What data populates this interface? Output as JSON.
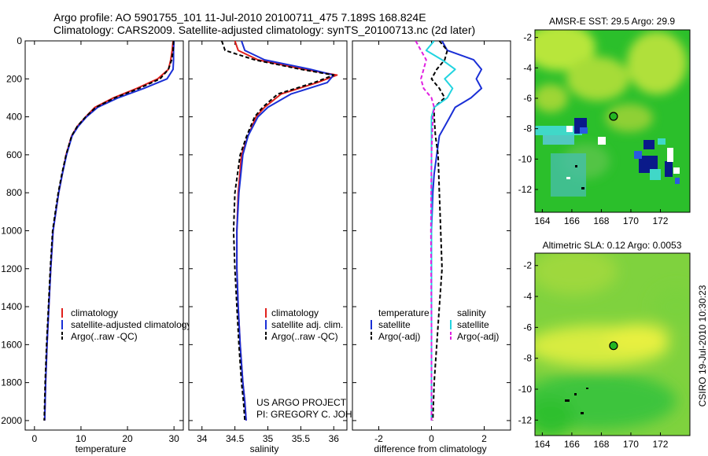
{
  "header": {
    "line1": "Argo profile: AO 5901755_101 11-Jul-2010 20100711_475 7.189S 168.824E",
    "line2": "Climatology: CARS2009. Satellite-adjusted climatology: synTS_20100713.nc (2d later)"
  },
  "credits": {
    "project": "US ARGO PROJECT",
    "pi": "PI: GREGORY C. JOHNSON",
    "timestamp": "CSIRO 19-Jul-2010 10:30:23"
  },
  "colors": {
    "climatology": "#e0201c",
    "satellite": "#1a2fd6",
    "argo": "#000000",
    "sat_diff_salinity": "#22d4e0",
    "argo_diff_salinity": "#e020e0",
    "map_green": "#2bbf2b",
    "map_yellow": "#e8f040",
    "map_cyan": "#40d8c8",
    "map_navy": "#0a1a8a",
    "map_white": "#ffffff"
  },
  "chart_data": [
    {
      "id": "temperature",
      "type": "line",
      "xlabel": "temperature",
      "ylabel": "",
      "xlim": [
        -2,
        32
      ],
      "ylim": [
        2050,
        0
      ],
      "xticks": [
        0,
        10,
        20,
        30
      ],
      "xtick_labels": [
        "0",
        "10",
        "20",
        "30"
      ],
      "yticks": [
        0,
        200,
        400,
        600,
        800,
        1000,
        1200,
        1400,
        1600,
        1800,
        2000
      ],
      "ytick_labels": [
        "0",
        "200",
        "400",
        "600",
        "800",
        "1000",
        "1200",
        "1400",
        "1600",
        "1800",
        "2000"
      ],
      "legend": [
        "climatology",
        "satellite-adjusted climatology",
        "Argo(..raw -QC)"
      ],
      "legend_position": "bottom-left",
      "series": [
        {
          "name": "climatology",
          "color": "#e0201c",
          "dash": "",
          "x": [
            29.8,
            29.6,
            29.3,
            28.8,
            26.5,
            22.0,
            17.0,
            13.0,
            11.0,
            9.2,
            8.0,
            6.8,
            6.0,
            5.2,
            4.6,
            4.0,
            3.5,
            3.1,
            2.7,
            2.4,
            2.2
          ],
          "y": [
            0,
            50,
            100,
            150,
            200,
            250,
            300,
            350,
            400,
            450,
            500,
            600,
            700,
            800,
            900,
            1000,
            1200,
            1400,
            1600,
            1800,
            2000
          ]
        },
        {
          "name": "satellite-adjusted climatology",
          "color": "#1a2fd6",
          "dash": "",
          "x": [
            30.0,
            29.9,
            29.9,
            29.8,
            28.5,
            23.5,
            18.0,
            13.6,
            11.2,
            9.4,
            8.1,
            6.9,
            6.0,
            5.2,
            4.6,
            4.0,
            3.5,
            3.1,
            2.7,
            2.4,
            2.2
          ],
          "y": [
            0,
            50,
            100,
            150,
            200,
            250,
            300,
            350,
            400,
            450,
            500,
            600,
            700,
            800,
            900,
            1000,
            1200,
            1400,
            1600,
            1800,
            2000
          ]
        },
        {
          "name": "Argo(..raw -QC)",
          "color": "#000000",
          "dash": "5,3",
          "x": [
            29.9,
            29.8,
            29.5,
            28.8,
            27.0,
            22.5,
            17.3,
            13.2,
            11.0,
            9.2,
            8.0,
            6.8,
            5.9,
            5.1,
            4.5,
            3.9,
            3.4,
            3.0,
            2.6,
            2.3,
            2.1
          ],
          "y": [
            0,
            50,
            100,
            150,
            200,
            250,
            300,
            350,
            400,
            450,
            500,
            600,
            700,
            800,
            900,
            1000,
            1200,
            1400,
            1600,
            1800,
            2000
          ]
        }
      ]
    },
    {
      "id": "salinity",
      "type": "line",
      "xlabel": "salinity",
      "ylabel": "",
      "xlim": [
        33.8,
        36.2
      ],
      "ylim": [
        2050,
        0
      ],
      "xticks": [
        34,
        34.5,
        35,
        35.5,
        36
      ],
      "xtick_labels": [
        "34",
        "34.5",
        "35",
        "35.5",
        "36"
      ],
      "legend": [
        "climatology",
        "satellite adj. clim.",
        "Argo(..raw -QC)"
      ],
      "legend_position": "bottom-right",
      "series": [
        {
          "name": "climatology",
          "color": "#e0201c",
          "dash": "",
          "x": [
            34.5,
            34.55,
            34.85,
            35.55,
            36.05,
            35.75,
            35.2,
            34.95,
            34.82,
            34.7,
            34.6,
            34.55,
            34.53,
            34.53,
            34.55,
            34.58,
            34.62,
            34.65,
            34.67
          ],
          "y": [
            0,
            50,
            100,
            150,
            180,
            220,
            280,
            350,
            400,
            500,
            600,
            800,
            1000,
            1200,
            1400,
            1600,
            1800,
            1900,
            2000
          ]
        },
        {
          "name": "satellite adj. clim.",
          "color": "#1a2fd6",
          "dash": "",
          "x": [
            34.6,
            34.65,
            34.95,
            35.65,
            36.0,
            35.9,
            35.35,
            35.0,
            34.85,
            34.7,
            34.62,
            34.56,
            34.53,
            34.53,
            34.55,
            34.58,
            34.62,
            34.65,
            34.67
          ],
          "y": [
            0,
            50,
            100,
            150,
            180,
            220,
            280,
            350,
            400,
            500,
            600,
            800,
            1000,
            1200,
            1400,
            1600,
            1800,
            1900,
            2000
          ]
        },
        {
          "name": "Argo(..raw -QC)",
          "color": "#000000",
          "dash": "5,3",
          "x": [
            34.3,
            34.35,
            34.8,
            35.5,
            36.0,
            35.7,
            35.15,
            34.92,
            34.8,
            34.68,
            34.58,
            34.5,
            34.48,
            34.5,
            34.53,
            34.56,
            34.6,
            34.63,
            34.65
          ],
          "y": [
            0,
            50,
            100,
            150,
            180,
            220,
            280,
            350,
            400,
            500,
            600,
            800,
            1000,
            1200,
            1400,
            1600,
            1800,
            1900,
            2000
          ]
        }
      ]
    },
    {
      "id": "difference",
      "type": "line",
      "xlabel": "difference from climatology",
      "ylabel": "",
      "xlim": [
        -3,
        3
      ],
      "ylim": [
        2050,
        0
      ],
      "xticks": [
        -2,
        0,
        2
      ],
      "xtick_labels": [
        "-2",
        "0",
        "2"
      ],
      "legend_groups": [
        {
          "title": "temperature",
          "items": [
            "satellite",
            "Argo(-adj)"
          ]
        },
        {
          "title": "salinity",
          "items": [
            "satellite",
            "Argo(-adj)"
          ]
        }
      ],
      "legend_position": "bottom",
      "series": [
        {
          "name": "temperature satellite",
          "color": "#1a2fd6",
          "dash": "",
          "x": [
            0.4,
            0.6,
            1.6,
            1.9,
            1.7,
            1.9,
            1.5,
            0.9,
            0.7,
            0.5,
            0.3,
            0.2,
            0.1,
            0.05,
            0.0,
            0.0,
            0.0
          ],
          "y": [
            0,
            50,
            100,
            150,
            200,
            250,
            300,
            350,
            400,
            450,
            500,
            600,
            700,
            800,
            1000,
            1500,
            2000
          ]
        },
        {
          "name": "temperature Argo(-adj)",
          "color": "#000000",
          "dash": "5,3",
          "x": [
            0.3,
            0.6,
            0.5,
            0.2,
            0.0,
            0.3,
            0.5,
            0.1,
            0.1,
            0.15,
            0.25,
            0.3,
            0.35,
            0.4,
            0.3,
            0.1,
            0.05
          ],
          "y": [
            0,
            50,
            100,
            150,
            200,
            250,
            300,
            350,
            400,
            500,
            600,
            800,
            1000,
            1200,
            1400,
            1800,
            2000
          ]
        },
        {
          "name": "salinity satellite",
          "color": "#22d4e0",
          "dash": "",
          "x": [
            0.1,
            -0.2,
            0.4,
            0.9,
            0.5,
            0.8,
            0.6,
            0.1,
            0.0,
            0.0,
            0.0,
            0.0,
            0.0
          ],
          "y": [
            0,
            50,
            100,
            150,
            200,
            250,
            300,
            350,
            400,
            600,
            1000,
            1500,
            2000
          ]
        },
        {
          "name": "salinity Argo(-adj)",
          "color": "#e020e0",
          "dash": "5,3",
          "x": [
            -0.6,
            -0.4,
            -0.2,
            -0.3,
            -0.4,
            -0.3,
            0.0,
            0.1,
            0.05,
            0.0,
            -0.02,
            0.0,
            0.0
          ],
          "y": [
            0,
            50,
            100,
            150,
            200,
            250,
            300,
            350,
            400,
            600,
            1000,
            1500,
            2000
          ]
        }
      ]
    },
    {
      "id": "sst_map",
      "type": "heatmap",
      "title": "AMSR-E SST: 29.5 Argo: 29.9",
      "xlim": [
        163.5,
        174
      ],
      "ylim": [
        -13.5,
        -1.5
      ],
      "xticks": [
        164,
        166,
        168,
        170,
        172
      ],
      "xtick_labels": [
        "164",
        "166",
        "168",
        "170",
        "172"
      ],
      "yticks": [
        -2,
        -4,
        -6,
        -8,
        -10,
        -12
      ],
      "ytick_labels": [
        "-2",
        "-4",
        "-6",
        "-8",
        "-10",
        "-12"
      ],
      "argo_location": {
        "lon": 168.824,
        "lat": -7.189
      }
    },
    {
      "id": "sla_map",
      "type": "heatmap",
      "title": "Altimetric SLA: 0.12 Argo: 0.0053",
      "xlim": [
        163.5,
        174
      ],
      "ylim": [
        -13,
        -1.2
      ],
      "xticks": [
        164,
        166,
        168,
        170,
        172
      ],
      "xtick_labels": [
        "164",
        "166",
        "168",
        "170",
        "172"
      ],
      "yticks": [
        -2,
        -4,
        -6,
        -8,
        -10,
        -12
      ],
      "ytick_labels": [
        "-2",
        "-4",
        "-6",
        "-8",
        "-10",
        "-12"
      ],
      "argo_location": {
        "lon": 168.824,
        "lat": -7.189
      }
    }
  ]
}
